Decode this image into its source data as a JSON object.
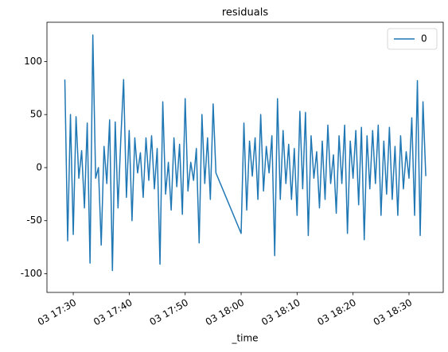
{
  "chart_data": {
    "type": "line",
    "title": "residuals",
    "x_label": "_time",
    "x": [
      "03 17:28:30",
      "03 17:29:00",
      "03 17:29:30",
      "03 17:30:00",
      "03 17:30:30",
      "03 17:31:00",
      "03 17:31:30",
      "03 17:32:00",
      "03 17:32:30",
      "03 17:33:00",
      "03 17:33:30",
      "03 17:34:00",
      "03 17:34:30",
      "03 17:35:00",
      "03 17:35:30",
      "03 17:36:00",
      "03 17:36:30",
      "03 17:37:00",
      "03 17:37:30",
      "03 17:38:00",
      "03 17:38:30",
      "03 17:39:00",
      "03 17:39:30",
      "03 17:40:00",
      "03 17:40:30",
      "03 17:41:00",
      "03 17:41:30",
      "03 17:42:00",
      "03 17:42:30",
      "03 17:43:00",
      "03 17:43:30",
      "03 17:44:00",
      "03 17:44:30",
      "03 17:45:00",
      "03 17:45:30",
      "03 17:46:00",
      "03 17:46:30",
      "03 17:47:00",
      "03 17:47:30",
      "03 17:48:00",
      "03 17:48:30",
      "03 17:49:00",
      "03 17:49:30",
      "03 17:50:00",
      "03 17:50:30",
      "03 17:51:00",
      "03 17:51:30",
      "03 17:52:00",
      "03 17:52:30",
      "03 17:53:00",
      "03 17:53:30",
      "03 17:54:00",
      "03 17:54:30",
      "03 17:55:00",
      "03 17:55:30",
      "03 18:00:00",
      "03 18:00:30",
      "03 18:01:00",
      "03 18:01:30",
      "03 18:02:00",
      "03 18:02:30",
      "03 18:03:00",
      "03 18:03:30",
      "03 18:04:00",
      "03 18:04:30",
      "03 18:05:00",
      "03 18:05:30",
      "03 18:06:00",
      "03 18:06:30",
      "03 18:07:00",
      "03 18:07:30",
      "03 18:08:00",
      "03 18:08:30",
      "03 18:09:00",
      "03 18:09:30",
      "03 18:10:00",
      "03 18:10:30",
      "03 18:11:00",
      "03 18:11:30",
      "03 18:12:00",
      "03 18:12:30",
      "03 18:13:00",
      "03 18:13:30",
      "03 18:14:00",
      "03 18:14:30",
      "03 18:15:00",
      "03 18:15:30",
      "03 18:16:00",
      "03 18:16:30",
      "03 18:17:00",
      "03 18:17:30",
      "03 18:18:00",
      "03 18:18:30",
      "03 18:19:00",
      "03 18:19:30",
      "03 18:20:00",
      "03 18:20:30",
      "03 18:21:00",
      "03 18:21:30",
      "03 18:22:00",
      "03 18:22:30",
      "03 18:23:00",
      "03 18:23:30",
      "03 18:24:00",
      "03 18:24:30",
      "03 18:25:00",
      "03 18:25:30",
      "03 18:26:00",
      "03 18:26:30",
      "03 18:27:00",
      "03 18:27:30",
      "03 18:28:00",
      "03 18:28:30",
      "03 18:29:00",
      "03 18:29:30",
      "03 18:30:00",
      "03 18:30:30",
      "03 18:31:00",
      "03 18:31:30",
      "03 18:32:00",
      "03 18:32:30",
      "03 18:33:00"
    ],
    "series": [
      {
        "name": "0",
        "color": "#1f77b4",
        "values": [
          83,
          -69,
          50,
          -63,
          48,
          -10,
          16,
          -38,
          42,
          -90,
          125,
          -10,
          0,
          -73,
          20,
          -15,
          45,
          -97,
          43,
          -38,
          27,
          83,
          -28,
          35,
          -50,
          28,
          -5,
          14,
          -28,
          28,
          -12,
          30,
          -20,
          18,
          -91,
          62,
          -25,
          5,
          -40,
          28,
          -18,
          22,
          -44,
          65,
          -22,
          5,
          -12,
          18,
          -71,
          50,
          -15,
          28,
          -30,
          60,
          -5,
          -62,
          42,
          -40,
          25,
          -8,
          28,
          -30,
          50,
          -22,
          20,
          -5,
          30,
          -83,
          65,
          -30,
          35,
          -15,
          22,
          -30,
          18,
          -45,
          53,
          -20,
          52,
          -64,
          30,
          -10,
          15,
          -38,
          25,
          -30,
          40,
          -15,
          12,
          -43,
          30,
          -15,
          40,
          -62,
          25,
          -10,
          35,
          -35,
          38,
          -68,
          30,
          -20,
          35,
          -15,
          40,
          -45,
          25,
          -25,
          38,
          -30,
          20,
          -45,
          30,
          -20,
          15,
          -10,
          47,
          -45,
          82,
          -64,
          62,
          -8
        ]
      }
    ],
    "xlim": [
      "03 17:25:18",
      "03 18:36:07"
    ],
    "xticks": [
      "03 17:30",
      "03 17:40",
      "03 17:50",
      "03 18:00",
      "03 18:10",
      "03 18:20",
      "03 18:30"
    ],
    "ylim": [
      -117.6,
      137
    ],
    "yticks": [
      -100,
      -50,
      0,
      50,
      100
    ],
    "legend": "upper right",
    "grid": false
  }
}
